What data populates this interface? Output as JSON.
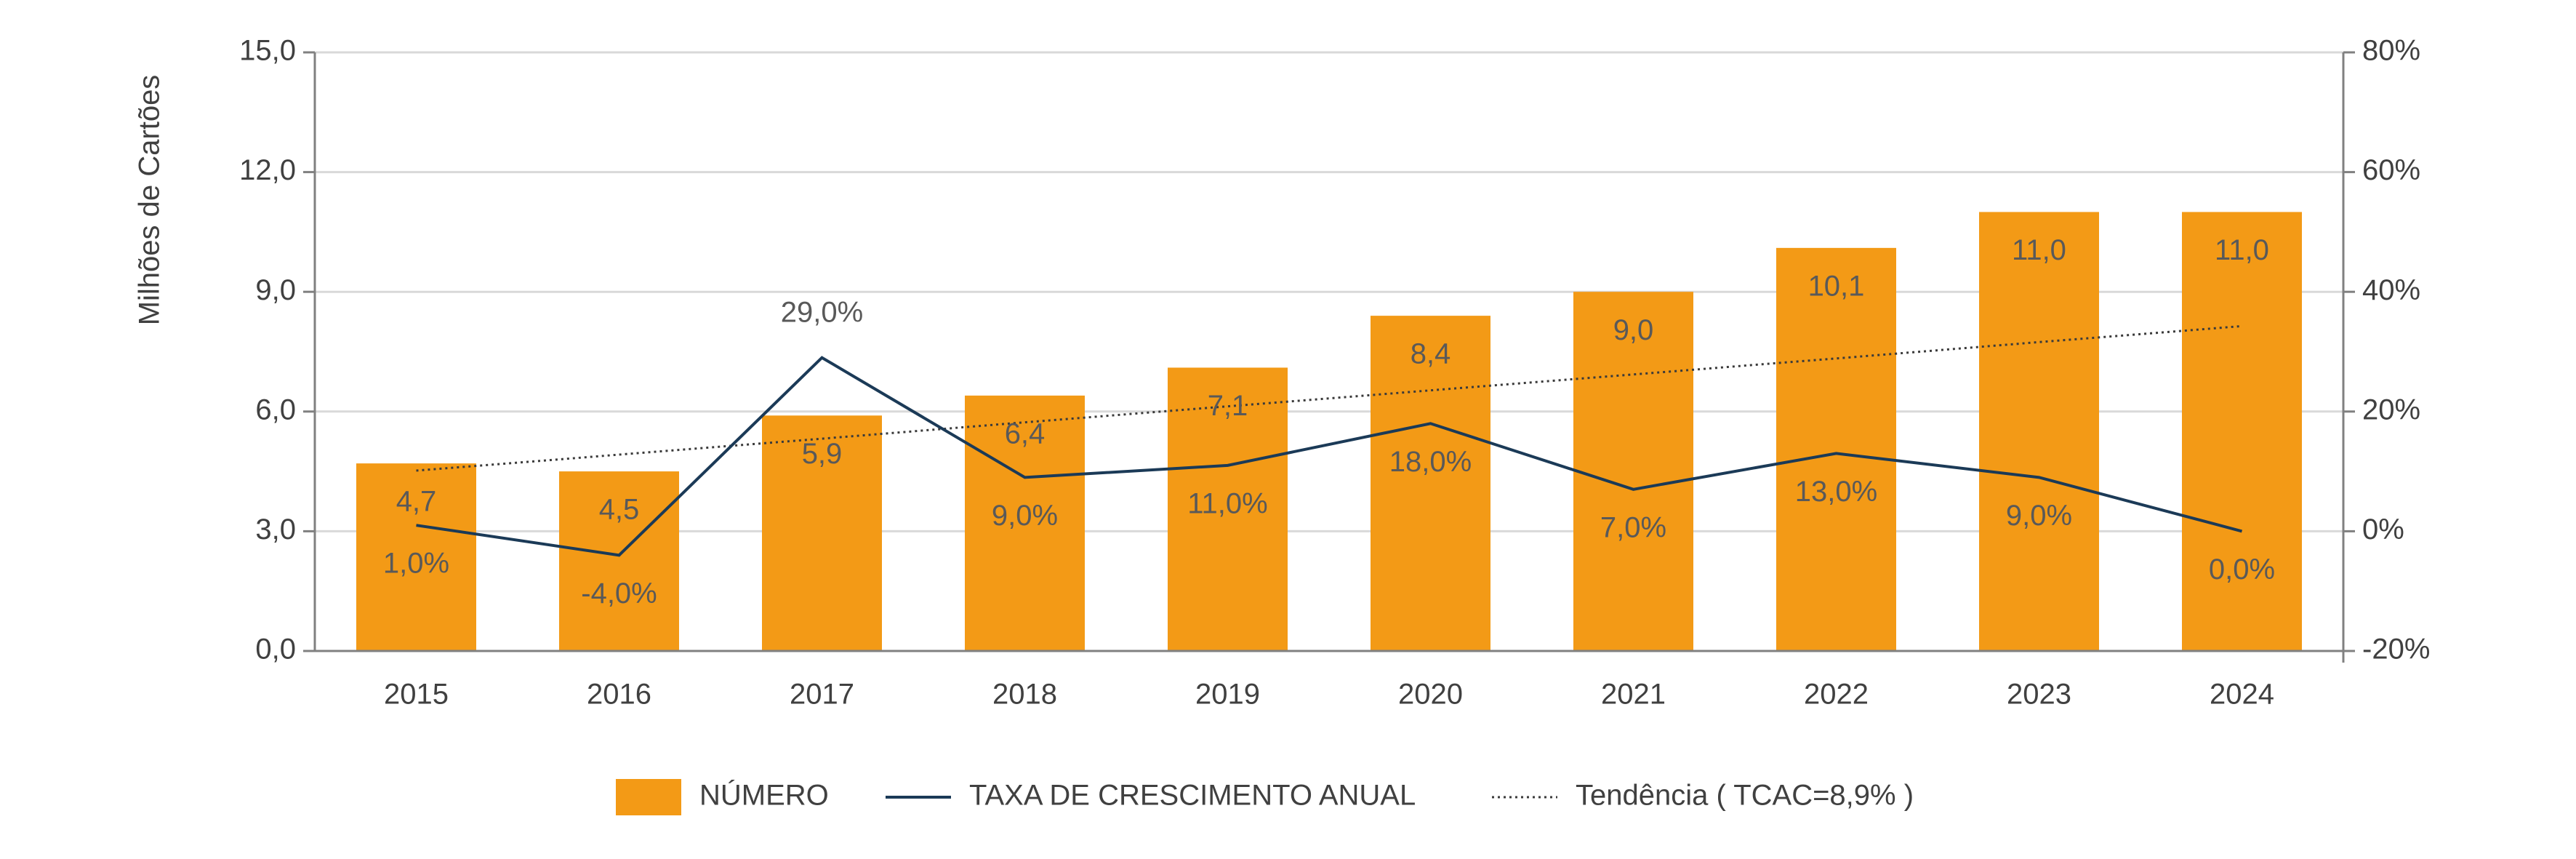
{
  "chart_data": {
    "type": "bar",
    "title": "",
    "xlabel": "",
    "ylabel": "Milhões de Cartões",
    "categories": [
      "2015",
      "2016",
      "2017",
      "2018",
      "2019",
      "2020",
      "2021",
      "2022",
      "2023",
      "2024"
    ],
    "ylim": [
      0,
      15
    ],
    "y_ticks": [
      "0,0",
      "3,0",
      "6,0",
      "9,0",
      "12,0",
      "15,0"
    ],
    "y2lim": [
      -20,
      80
    ],
    "y2_ticks": [
      "-20%",
      "0%",
      "20%",
      "40%",
      "60%",
      "80%"
    ],
    "grid": true,
    "series": [
      {
        "name": "NÚMERO",
        "type": "bar",
        "axis": "left",
        "color": "#F39A16",
        "values": [
          4.7,
          4.5,
          5.9,
          6.4,
          7.1,
          8.4,
          9.0,
          10.1,
          11.0,
          11.0
        ],
        "labels": [
          "4,7",
          "4,5",
          "5,9",
          "6,4",
          "7,1",
          "8,4",
          "9,0",
          "10,1",
          "11,0",
          "11,0"
        ]
      },
      {
        "name": "TAXA DE CRESCIMENTO ANUAL",
        "type": "line",
        "axis": "right",
        "color": "#1B3A57",
        "values": [
          1.0,
          -4.0,
          29.0,
          9.0,
          11.0,
          18.0,
          7.0,
          13.0,
          9.0,
          0.0
        ],
        "labels": [
          "1,0%",
          "-4,0%",
          "29,0%",
          "9,0%",
          "11,0%",
          "18,0%",
          "7,0%",
          "13,0%",
          "9,0%",
          "0,0%"
        ]
      },
      {
        "name": "Tendência ( TCAC=8,9% )",
        "type": "trendline",
        "axis": "left",
        "color": "#3A3A3A",
        "values": [
          4.52,
          4.92,
          5.32,
          5.73,
          6.13,
          6.53,
          6.93,
          7.33,
          7.74,
          8.14
        ]
      }
    ],
    "legend": {
      "position": "bottom-center",
      "items": [
        "NÚMERO",
        "TAXA DE CRESCIMENTO ANUAL",
        "Tendência ( TCAC=8,9% )"
      ]
    }
  }
}
